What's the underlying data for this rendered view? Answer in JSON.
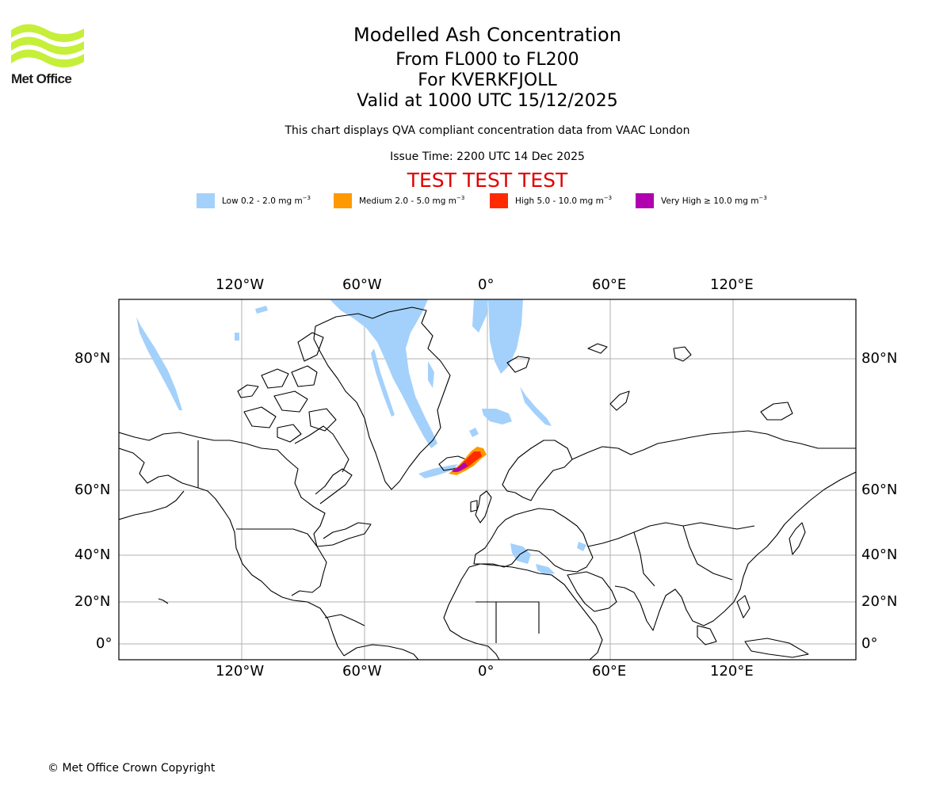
{
  "logo": {
    "name": "Met Office"
  },
  "titles": {
    "main": "Modelled Ash Concentration",
    "levels": "From FL000 to FL200",
    "volcano": "For KVERKFJOLL",
    "valid": "Valid at 1000 UTC 15/12/2025",
    "compliance": "This chart displays QVA compliant concentration data from VAAC London",
    "issue": "Issue Time: 2200 UTC 14 Dec 2025",
    "test": "TEST TEST TEST"
  },
  "legend": [
    {
      "label": "Low 0.2 - 2.0 mg m",
      "color": "#a3d1fb"
    },
    {
      "label": "Medium 2.0 - 5.0 mg m",
      "color": "#ff9900"
    },
    {
      "label": "High 5.0 - 10.0 mg m",
      "color": "#ff2a00"
    },
    {
      "label": "Very High ≥ 10.0 mg m",
      "color": "#b000b0"
    }
  ],
  "legend_unit_exponent": "−3",
  "map": {
    "longitude_ticks": [
      "120°W",
      "60°W",
      "0°",
      "60°E",
      "120°E"
    ],
    "latitude_ticks": [
      "80°N",
      "60°N",
      "40°N",
      "20°N",
      "0°"
    ],
    "grid": true
  },
  "copyright": "© Met Office Crown Copyright"
}
